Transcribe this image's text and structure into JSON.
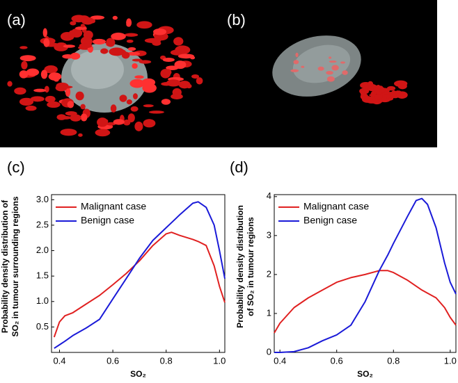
{
  "panels": [
    "(a)",
    "(b)"
  ],
  "chart_data": [
    {
      "type": "line",
      "title": "(c)",
      "ylabel": [
        "Probability density distribution of",
        "SO₂ in tumour surrounding regions"
      ],
      "xlabel": "SO₂",
      "x": [
        0.38,
        0.4,
        0.42,
        0.45,
        0.5,
        0.55,
        0.6,
        0.65,
        0.7,
        0.75,
        0.8,
        0.82,
        0.85,
        0.9,
        0.92,
        0.95,
        0.98,
        1.0,
        1.02
      ],
      "series": [
        {
          "name": "Malignant case",
          "color": "#e02020",
          "values": [
            0.3,
            0.6,
            0.72,
            0.78,
            0.95,
            1.12,
            1.33,
            1.55,
            1.8,
            2.1,
            2.33,
            2.36,
            2.3,
            2.22,
            2.18,
            2.1,
            1.7,
            1.3,
            0.98
          ]
        },
        {
          "name": "Benign case",
          "color": "#1a1ad8",
          "values": [
            0.08,
            0.15,
            0.22,
            0.33,
            0.48,
            0.65,
            1.05,
            1.45,
            1.85,
            2.2,
            2.45,
            2.55,
            2.7,
            2.93,
            2.96,
            2.85,
            2.5,
            2.0,
            1.45
          ]
        }
      ],
      "xlim": [
        0.37,
        1.02
      ],
      "xticks": [
        0.4,
        0.6,
        0.8,
        {
          "value": 1.0,
          "label": "1.0"
        }
      ],
      "ylim": [
        0,
        3.1
      ],
      "yticks": [
        {
          "value": 0.5,
          "label": "0.5"
        },
        {
          "value": 1.0,
          "label": "1.0"
        },
        {
          "value": 1.5,
          "label": "1.5"
        },
        {
          "value": 2.0,
          "label": "2.0"
        },
        {
          "value": 2.5,
          "label": "2.5"
        },
        {
          "value": 3.0,
          "label": "3.0"
        }
      ],
      "legend": "upper left",
      "grid": false
    },
    {
      "type": "line",
      "title": "(d)",
      "ylabel": [
        "Probability density distribution",
        "of SO₂ in tumour regions"
      ],
      "xlabel": "SO₂",
      "x": [
        0.38,
        0.4,
        0.45,
        0.5,
        0.55,
        0.6,
        0.65,
        0.7,
        0.75,
        0.78,
        0.8,
        0.85,
        0.88,
        0.9,
        0.92,
        0.95,
        0.98,
        1.0,
        1.02
      ],
      "series": [
        {
          "name": "Malignant case",
          "color": "#e02020",
          "values": [
            0.5,
            0.75,
            1.15,
            1.4,
            1.6,
            1.8,
            1.92,
            2.0,
            2.1,
            2.1,
            2.05,
            1.85,
            1.7,
            1.6,
            1.52,
            1.4,
            1.15,
            0.9,
            0.7
          ]
        },
        {
          "name": "Benign case",
          "color": "#1a1ad8",
          "values": [
            0,
            0,
            0.02,
            0.12,
            0.3,
            0.45,
            0.7,
            1.3,
            2.1,
            2.5,
            2.8,
            3.5,
            3.9,
            3.95,
            3.8,
            3.2,
            2.3,
            1.8,
            1.5
          ]
        }
      ],
      "xlim": [
        0.38,
        1.02
      ],
      "xticks": [
        0.4,
        0.6,
        0.8,
        {
          "value": 1.0,
          "label": "1.0"
        }
      ],
      "ylim": [
        0,
        4.05
      ],
      "yticks": [
        0,
        1,
        2,
        3,
        4
      ],
      "legend": "upper left",
      "grid": false
    }
  ]
}
